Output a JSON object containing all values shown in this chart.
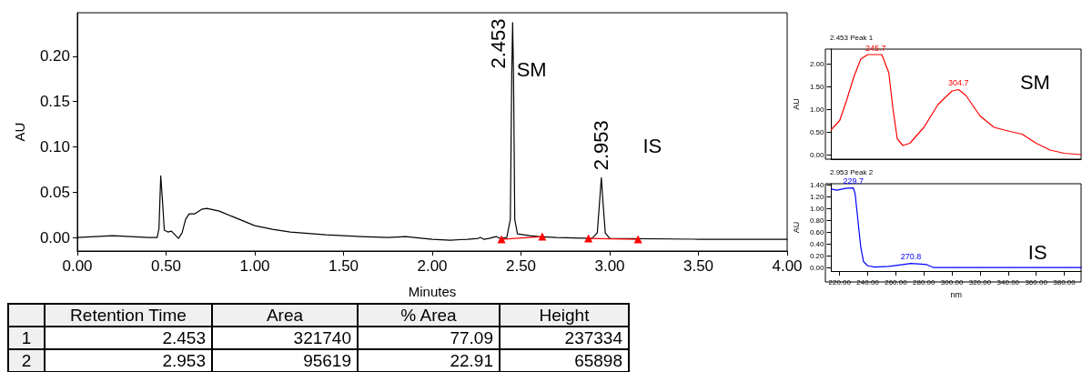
{
  "chart_data": [
    {
      "type": "line",
      "xlabel": "Minutes",
      "ylabel": "AU",
      "xlim": [
        0,
        4
      ],
      "ylim": [
        -0.015,
        0.248
      ],
      "xticks": [
        {
          "value": 0,
          "label": "0.00"
        },
        {
          "value": 0.5,
          "label": "0.50"
        },
        {
          "value": 1,
          "label": "1.00"
        },
        {
          "value": 1.5,
          "label": "1.50"
        },
        {
          "value": 2,
          "label": "2.00"
        },
        {
          "value": 2.5,
          "label": "2.50"
        },
        {
          "value": 3,
          "label": "3.00"
        },
        {
          "value": 3.5,
          "label": "3.50"
        },
        {
          "value": 4,
          "label": "4.00"
        }
      ],
      "yticks": [
        {
          "value": 0,
          "label": "0.00"
        },
        {
          "value": 0.05,
          "label": "0.05"
        },
        {
          "value": 0.1,
          "label": "0.10"
        },
        {
          "value": 0.15,
          "label": "0.15"
        },
        {
          "value": 0.2,
          "label": "0.20"
        }
      ],
      "grid": false,
      "legend": false,
      "marker": "none",
      "series": [
        {
          "color": "#000000",
          "x": [
            0,
            0.1,
            0.2,
            0.3,
            0.4,
            0.45,
            0.46,
            0.47,
            0.48,
            0.49,
            0.51,
            0.53,
            0.55,
            0.57,
            0.59,
            0.61,
            0.63,
            0.66,
            0.7,
            0.73,
            0.8,
            0.9,
            1.0,
            1.1,
            1.2,
            1.4,
            1.6,
            1.75,
            1.85,
            1.9,
            2.0,
            2.1,
            2.2,
            2.26,
            2.27,
            2.29,
            2.32,
            2.34,
            2.36,
            2.38,
            2.42,
            2.44,
            2.448,
            2.453,
            2.458,
            2.465,
            2.48,
            2.55,
            2.6,
            2.7,
            2.9,
            2.93,
            2.945,
            2.953,
            2.96,
            2.975,
            3.0,
            3.5,
            4.0
          ],
          "values": [
            0,
            0.001,
            0.002,
            0.001,
            0,
            0,
            0.01,
            0.068,
            0.04,
            0.008,
            0.006,
            0.007,
            0.003,
            -0.001,
            0.005,
            0.02,
            0.026,
            0.026,
            0.031,
            0.032,
            0.029,
            0.021,
            0.013,
            0.009,
            0.006,
            0.003,
            0.001,
            0,
            0.001,
            0,
            -0.002,
            -0.003,
            -0.002,
            -0.001,
            0,
            -0.002,
            -0.001,
            0,
            0.001,
            -0.001,
            0,
            0.02,
            0.18,
            0.237,
            0.18,
            0.02,
            0.004,
            0.002,
            0.001,
            0,
            -0.001,
            0.005,
            0.045,
            0.066,
            0.045,
            0.005,
            -0.001,
            -0.002,
            -0.002
          ]
        },
        {
          "color": "#ff0000",
          "marker": "triangle",
          "x": [
            2.39,
            2.62,
            2.75,
            2.88,
            3.16
          ],
          "values": [
            -0.002,
            0.001,
            null,
            -0.001,
            -0.002
          ]
        }
      ],
      "annotations": [
        {
          "text": "2.453",
          "x": 2.453,
          "y": 0.237
        },
        "SM",
        {
          "text": "2.953",
          "x": 2.953,
          "y": 0.066
        },
        "IS"
      ]
    },
    {
      "type": "line",
      "title": "2.453 Peak 1",
      "ylabel": "AU",
      "xlim": [
        214,
        392
      ],
      "ylim": [
        -0.1,
        2.32
      ],
      "tick_labels": "y",
      "yticks": [
        {
          "value": 0,
          "label": "0.00"
        },
        {
          "value": 0.5,
          "label": "0.50"
        },
        {
          "value": 1,
          "label": "1.00"
        },
        {
          "value": 1.5,
          "label": "1.50"
        },
        {
          "value": 2,
          "label": "2.00"
        }
      ],
      "grid": false,
      "legend": false,
      "marker": "none",
      "series": [
        {
          "color": "#ff0000",
          "x": [
            214,
            220,
            225,
            230,
            235,
            240,
            245.7,
            250,
            255,
            258,
            261,
            265,
            270,
            280,
            290,
            300,
            304.7,
            310,
            320,
            330,
            340,
            350,
            360,
            370,
            380,
            392
          ],
          "values": [
            0.55,
            0.75,
            1.2,
            1.7,
            2.1,
            2.2,
            2.2,
            2.2,
            1.8,
            1.0,
            0.35,
            0.2,
            0.25,
            0.6,
            1.1,
            1.4,
            1.43,
            1.3,
            0.85,
            0.6,
            0.52,
            0.45,
            0.25,
            0.1,
            0.03,
            0
          ]
        }
      ],
      "annotations": [
        {
          "text": "245.7",
          "x": 245.7,
          "y": 2.2
        },
        {
          "text": "304.7",
          "x": 304.7,
          "y": 1.43
        },
        "SM"
      ]
    },
    {
      "type": "line",
      "title": "2.953 Peak 2",
      "xlabel": "nm",
      "ylabel": "AU",
      "xlim": [
        214,
        392
      ],
      "ylim": [
        -0.06,
        1.42
      ],
      "xticks": [
        {
          "value": 220,
          "label": "220.00"
        },
        {
          "value": 240,
          "label": "240.00"
        },
        {
          "value": 260,
          "label": "260.00"
        },
        {
          "value": 280,
          "label": "280.00"
        },
        {
          "value": 300,
          "label": "300.00"
        },
        {
          "value": 320,
          "label": "320.00"
        },
        {
          "value": 340,
          "label": "340.00"
        },
        {
          "value": 360,
          "label": "360.00"
        },
        {
          "value": 380,
          "label": "380.00"
        }
      ],
      "yticks": [
        {
          "value": 0,
          "label": "0.00"
        },
        {
          "value": 0.2,
          "label": "0.20"
        },
        {
          "value": 0.4,
          "label": "0.40"
        },
        {
          "value": 0.6,
          "label": "0.60"
        },
        {
          "value": 0.8,
          "label": "0.80"
        },
        {
          "value": 1,
          "label": "1.00"
        },
        {
          "value": 1.2,
          "label": "1.20"
        },
        {
          "value": 1.4,
          "label": "1.40"
        }
      ],
      "grid": false,
      "legend": false,
      "marker": "none",
      "series": [
        {
          "color": "#0000ff",
          "x": [
            214,
            218,
            224,
            229.7,
            231,
            233,
            235,
            237,
            240,
            245,
            255,
            265,
            270.8,
            278,
            282,
            287,
            300,
            392
          ],
          "values": [
            1.33,
            1.31,
            1.34,
            1.35,
            1.25,
            0.8,
            0.35,
            0.1,
            0.03,
            0.01,
            0.02,
            0.05,
            0.07,
            0.06,
            0.05,
            0,
            0,
            0
          ]
        }
      ],
      "annotations": [
        {
          "text": "229.7",
          "x": 229.7,
          "y": 1.35
        },
        {
          "text": "270.8",
          "x": 270.8,
          "y": 0.07
        },
        "IS"
      ]
    },
    {
      "type": "other",
      "categories": [
        "Retention Time",
        "Area",
        "% Area",
        "Height"
      ],
      "y_categories": [
        "1",
        "2"
      ],
      "cell_labels": [
        [
          "2.453",
          "321740",
          "77.09",
          "237334"
        ],
        [
          "2.953",
          "95619",
          "22.91",
          "65898"
        ]
      ]
    }
  ]
}
